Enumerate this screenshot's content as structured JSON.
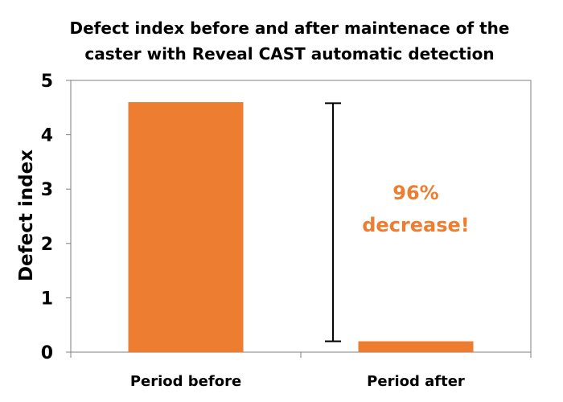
{
  "chart_data": {
    "type": "bar",
    "title_lines": [
      "Defect index before and after maintenace of the",
      "caster with Reveal CAST automatic detection"
    ],
    "xlabel": "",
    "ylabel": "Defect index",
    "categories": [
      "Period before",
      "Period after"
    ],
    "values": [
      4.6,
      0.2
    ],
    "ylim": [
      0,
      5
    ],
    "yticks": [
      0,
      1,
      2,
      3,
      4,
      5
    ],
    "grid": false,
    "bar_color": "#ED7D31",
    "annotation": {
      "lines": [
        "96%",
        "decrease!"
      ],
      "color": "#ED7D31",
      "range": [
        0.2,
        4.58
      ]
    }
  }
}
